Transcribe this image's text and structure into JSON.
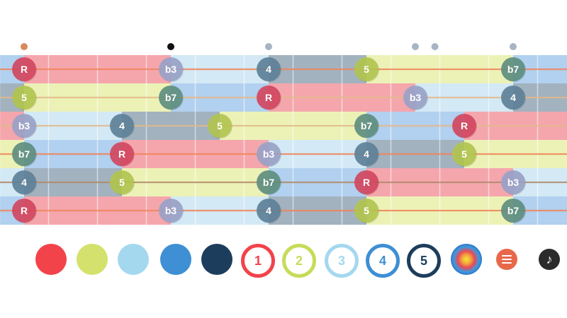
{
  "fretboard": {
    "fret_count": 12,
    "string_count": 6,
    "markers": [
      {
        "fret": 1,
        "color": "#d98a5b"
      },
      {
        "fret": 4,
        "color": "#111111"
      },
      {
        "fret": 6,
        "color": "#a8b4c3"
      },
      {
        "fret": 9,
        "color": "#a8b4c3"
      },
      {
        "fret": 9.4,
        "color": "#a8b4c3"
      },
      {
        "fret": 11,
        "color": "#a8b4c3"
      }
    ],
    "degree_colors": {
      "R": "#f5a6ad",
      "b3": "#d3e9f5",
      "4": "#a2b2bf",
      "5": "#ecf2b6",
      "b7": "#b2d0ef"
    },
    "dot_colors": {
      "R": "#d4475f",
      "b3": "#9aa3c9",
      "4": "#5e8299",
      "5": "#b2c74f",
      "b7": "#5e8f7f"
    },
    "strings": [
      {
        "line_color": "#f0845a",
        "notes": [
          {
            "fret": 1,
            "label": "R"
          },
          {
            "fret": 4,
            "label": "b3"
          },
          {
            "fret": 6,
            "label": "4"
          },
          {
            "fret": 8,
            "label": "5"
          },
          {
            "fret": 11,
            "label": "b7"
          }
        ]
      },
      {
        "line_color": "#e3b98a",
        "notes": [
          {
            "fret": 1,
            "label": "5"
          },
          {
            "fret": 4,
            "label": "b7"
          },
          {
            "fret": 6,
            "label": "R"
          },
          {
            "fret": 9,
            "label": "b3"
          },
          {
            "fret": 11,
            "label": "4"
          }
        ]
      },
      {
        "line_color": "#e3b98a",
        "notes": [
          {
            "fret": 1,
            "label": "b3"
          },
          {
            "fret": 3,
            "label": "4"
          },
          {
            "fret": 5,
            "label": "5"
          },
          {
            "fret": 8,
            "label": "b7"
          },
          {
            "fret": 10,
            "label": "R"
          }
        ]
      },
      {
        "line_color": "#f0845a",
        "notes": [
          {
            "fret": 1,
            "label": "b7"
          },
          {
            "fret": 3,
            "label": "R"
          },
          {
            "fret": 6,
            "label": "b3"
          },
          {
            "fret": 8,
            "label": "4"
          },
          {
            "fret": 10,
            "label": "5"
          }
        ]
      },
      {
        "line_color": "#b08a6a",
        "notes": [
          {
            "fret": 1,
            "label": "4"
          },
          {
            "fret": 3,
            "label": "5"
          },
          {
            "fret": 6,
            "label": "b7"
          },
          {
            "fret": 8,
            "label": "R"
          },
          {
            "fret": 11,
            "label": "b3"
          }
        ]
      },
      {
        "line_color": "#f0845a",
        "notes": [
          {
            "fret": 1,
            "label": "R"
          },
          {
            "fret": 4,
            "label": "b3"
          },
          {
            "fret": 6,
            "label": "4"
          },
          {
            "fret": 8,
            "label": "5"
          },
          {
            "fret": 11,
            "label": "b7"
          }
        ]
      }
    ]
  },
  "palette": {
    "swatches": [
      {
        "name": "red",
        "color": "#f2434b"
      },
      {
        "name": "lime",
        "color": "#d4e16d"
      },
      {
        "name": "light-blue",
        "color": "#a4d8ef"
      },
      {
        "name": "blue",
        "color": "#3e8fd4"
      },
      {
        "name": "navy",
        "color": "#1d3d5c"
      }
    ],
    "rings": [
      {
        "label": "1",
        "color": "#f2434b"
      },
      {
        "label": "2",
        "color": "#c7db5a"
      },
      {
        "label": "3",
        "color": "#a4d8ef"
      },
      {
        "label": "4",
        "color": "#3e8fd4"
      },
      {
        "label": "5",
        "color": "#1d3d5c"
      }
    ],
    "heatmap_icon": "heatmap-icon",
    "menu_icon": "menu-icon",
    "music_icon": "music-note-icon",
    "music_glyph": "♪"
  }
}
